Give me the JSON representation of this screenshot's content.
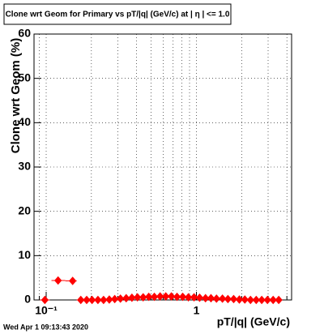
{
  "chart_data": {
    "type": "scatter",
    "title": "Clone wrt Geom for Primary vs pT/|q| (GeV/c) at |  η | <= 1.0",
    "x_label": "pT/|q| (GeV/c)",
    "y_label": "Clone wrt Geom (%)",
    "footer": "Wed Apr  1 09:13:43 2020",
    "x_log": true,
    "grid": true,
    "xlim": [
      0.083,
      4.3
    ],
    "ylim": [
      0,
      60
    ],
    "xticks": [
      {
        "value": 0.1,
        "label": "10⁻¹"
      },
      1
    ],
    "yticks": [
      0,
      10,
      20,
      30,
      40,
      50,
      60
    ],
    "series": [
      {
        "name": "Clone wrt Geom",
        "color": "#ff0000",
        "x": [
          0.098,
          0.12,
          0.15,
          0.17,
          0.186,
          0.202,
          0.221,
          0.241,
          0.263,
          0.286,
          0.312,
          0.341,
          0.372,
          0.405,
          0.442,
          0.482,
          0.525,
          0.573,
          0.625,
          0.681,
          0.743,
          0.811,
          0.884,
          0.964,
          1.05,
          1.15,
          1.25,
          1.36,
          1.49,
          1.62,
          1.77,
          1.93,
          2.1,
          2.29,
          2.5,
          2.72,
          2.97,
          3.24,
          3.53
        ],
        "values": [
          0,
          4.4,
          4.3,
          0,
          0,
          0,
          0,
          0,
          0.1,
          0.2,
          0.3,
          0.4,
          0.5,
          0.6,
          0.6,
          0.7,
          0.7,
          0.8,
          0.8,
          0.8,
          0.7,
          0.7,
          0.6,
          0.6,
          0.5,
          0.4,
          0.4,
          0.3,
          0.3,
          0.2,
          0.2,
          0.1,
          0.1,
          0,
          0,
          0,
          0,
          0,
          0
        ]
      }
    ]
  }
}
